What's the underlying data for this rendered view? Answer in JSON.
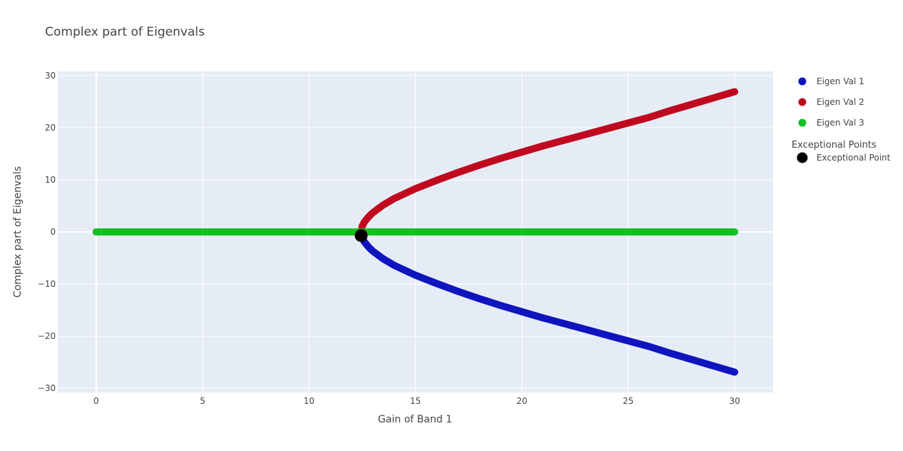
{
  "chart_data": {
    "type": "scatter",
    "title": "Complex part of Eigenvals",
    "xlabel": "Gain of Band 1",
    "ylabel": "Complex part of Eigenvals",
    "xlim": [
      -1.8,
      31.8
    ],
    "ylim": [
      -30.8,
      30.8
    ],
    "x_ticks": [
      0,
      5,
      10,
      15,
      20,
      25,
      30
    ],
    "x_tick_labels": [
      "0",
      "5",
      "10",
      "15",
      "20",
      "25",
      "30"
    ],
    "y_ticks": [
      -30,
      -20,
      -10,
      0,
      10,
      20,
      30
    ],
    "y_tick_labels": [
      "−30",
      "−20",
      "−10",
      "0",
      "10",
      "20",
      "30"
    ],
    "grid": true,
    "legend_placement": "right",
    "background_color": "#e5ecf6",
    "series": [
      {
        "name": "Eigen Val 1",
        "color": "#0f14be",
        "x": [
          0,
          2,
          4,
          6,
          8,
          10,
          12,
          12.45,
          12.5,
          12.6,
          12.8,
          13,
          13.5,
          14,
          15,
          16,
          17,
          18,
          19,
          20,
          21,
          22,
          23,
          24,
          25,
          26,
          27,
          28,
          29,
          30
        ],
        "y": [
          0,
          0,
          0,
          0,
          0,
          0,
          0,
          0,
          -1.1,
          -1.9,
          -2.9,
          -3.7,
          -5.2,
          -6.4,
          -8.3,
          -9.9,
          -11.4,
          -12.8,
          -14.1,
          -15.3,
          -16.5,
          -17.6,
          -18.7,
          -19.8,
          -20.9,
          -22.0,
          -23.3,
          -24.5,
          -25.7,
          -26.9
        ]
      },
      {
        "name": "Eigen Val 2",
        "color": "#c0091e",
        "x": [
          0,
          2,
          4,
          6,
          8,
          10,
          12,
          12.45,
          12.5,
          12.6,
          12.8,
          13,
          13.5,
          14,
          15,
          16,
          17,
          18,
          19,
          20,
          21,
          22,
          23,
          24,
          25,
          26,
          27,
          28,
          29,
          30
        ],
        "y": [
          0,
          0,
          0,
          0,
          0,
          0,
          0,
          0,
          1.1,
          1.9,
          2.9,
          3.7,
          5.2,
          6.4,
          8.3,
          9.9,
          11.4,
          12.8,
          14.1,
          15.3,
          16.5,
          17.6,
          18.7,
          19.8,
          20.9,
          22.0,
          23.3,
          24.5,
          25.7,
          26.9
        ]
      },
      {
        "name": "Eigen Val 3",
        "color": "#14c020",
        "x": [
          0,
          30
        ],
        "y": [
          0,
          0
        ]
      }
    ],
    "legend_group_title": "Exceptional Points",
    "exceptional_point": {
      "name": "Exceptional Point",
      "color": "#000000",
      "x": 12.45,
      "y": -0.7
    }
  }
}
